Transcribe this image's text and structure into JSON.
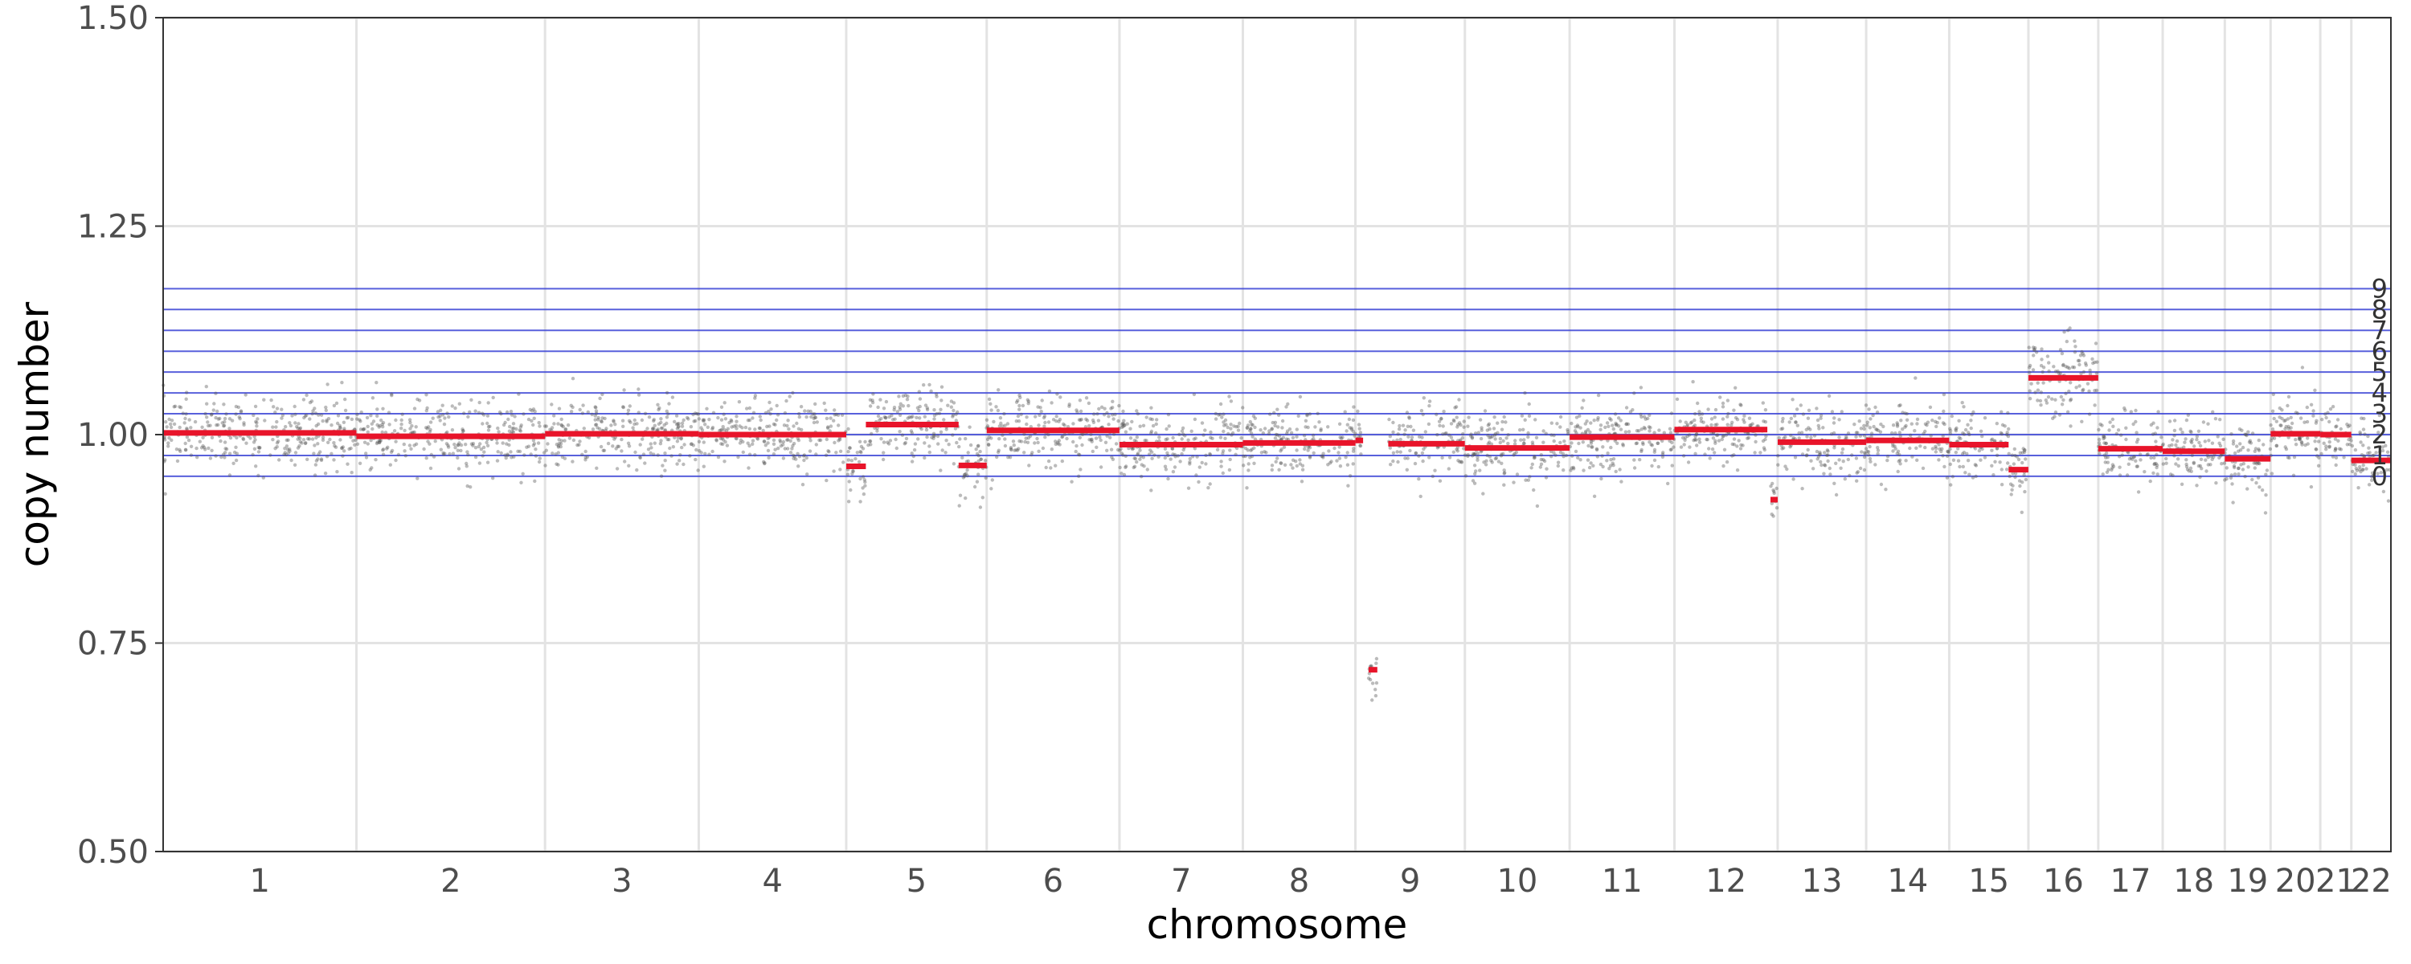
{
  "chart_data": {
    "type": "scatter",
    "title": "",
    "xlabel": "chromosome",
    "ylabel": "copy number",
    "ylim": [
      0.5,
      1.5
    ],
    "yticks": [
      "0.50",
      "0.75",
      "1.00",
      "1.25",
      "1.50"
    ],
    "grid": true,
    "colors": {
      "points": "#555555",
      "segments": "#e8142a",
      "levels": "#3b44d6",
      "grid": "#e3e3e3"
    },
    "chromosomes": [
      {
        "label": "1",
        "length": 249,
        "segments": [
          {
            "start": 0,
            "end": 1,
            "value": 1.002
          }
        ],
        "spread": 0.035
      },
      {
        "label": "2",
        "length": 243,
        "segments": [
          {
            "start": 0,
            "end": 1,
            "value": 0.998
          }
        ],
        "spread": 0.035
      },
      {
        "label": "3",
        "length": 198,
        "segments": [
          {
            "start": 0,
            "end": 1,
            "value": 1.001
          }
        ],
        "spread": 0.035
      },
      {
        "label": "4",
        "length": 190,
        "segments": [
          {
            "start": 0,
            "end": 1,
            "value": 1.0
          }
        ],
        "spread": 0.035
      },
      {
        "label": "5",
        "length": 181,
        "segments": [
          {
            "start": 0,
            "end": 0.14,
            "value": 0.962
          },
          {
            "start": 0.14,
            "end": 0.8,
            "value": 1.012
          },
          {
            "start": 0.8,
            "end": 1,
            "value": 0.963
          }
        ],
        "spread": 0.035
      },
      {
        "label": "6",
        "length": 171,
        "segments": [
          {
            "start": 0,
            "end": 1,
            "value": 1.005
          }
        ],
        "spread": 0.035
      },
      {
        "label": "7",
        "length": 159,
        "segments": [
          {
            "start": 0,
            "end": 1,
            "value": 0.988
          }
        ],
        "spread": 0.037
      },
      {
        "label": "8",
        "length": 145,
        "segments": [
          {
            "start": 0,
            "end": 1,
            "value": 0.99
          }
        ],
        "spread": 0.037
      },
      {
        "label": "9",
        "length": 141,
        "segments": [
          {
            "start": 0,
            "end": 0.07,
            "value": 0.993
          },
          {
            "start": 0.12,
            "end": 0.2,
            "value": 0.718
          },
          {
            "start": 0.3,
            "end": 1,
            "value": 0.989
          }
        ],
        "spread": 0.035
      },
      {
        "label": "10",
        "length": 135,
        "segments": [
          {
            "start": 0,
            "end": 1,
            "value": 0.984
          }
        ],
        "spread": 0.035
      },
      {
        "label": "11",
        "length": 135,
        "segments": [
          {
            "start": 0,
            "end": 1,
            "value": 0.997
          }
        ],
        "spread": 0.035
      },
      {
        "label": "12",
        "length": 133,
        "segments": [
          {
            "start": 0,
            "end": 0.9,
            "value": 1.006
          },
          {
            "start": 0.93,
            "end": 1,
            "value": 0.922
          }
        ],
        "spread": 0.035
      },
      {
        "label": "13",
        "length": 114,
        "segments": [
          {
            "start": 0,
            "end": 1,
            "value": 0.991
          }
        ],
        "spread": 0.035
      },
      {
        "label": "14",
        "length": 107,
        "segments": [
          {
            "start": 0,
            "end": 1,
            "value": 0.993
          }
        ],
        "spread": 0.035
      },
      {
        "label": "15",
        "length": 102,
        "segments": [
          {
            "start": 0,
            "end": 0.75,
            "value": 0.988
          },
          {
            "start": 0.75,
            "end": 1,
            "value": 0.958
          }
        ],
        "spread": 0.037
      },
      {
        "label": "16",
        "length": 90,
        "segments": [
          {
            "start": 0,
            "end": 1,
            "value": 1.068
          }
        ],
        "spread": 0.04
      },
      {
        "label": "17",
        "length": 83,
        "segments": [
          {
            "start": 0,
            "end": 1,
            "value": 0.983
          }
        ],
        "spread": 0.035
      },
      {
        "label": "18",
        "length": 80,
        "segments": [
          {
            "start": 0,
            "end": 1,
            "value": 0.98
          }
        ],
        "spread": 0.035
      },
      {
        "label": "19",
        "length": 59,
        "segments": [
          {
            "start": 0,
            "end": 1,
            "value": 0.971
          }
        ],
        "spread": 0.035
      },
      {
        "label": "20",
        "length": 64,
        "segments": [
          {
            "start": 0,
            "end": 1,
            "value": 1.001
          }
        ],
        "spread": 0.035
      },
      {
        "label": "21",
        "length": 40,
        "segments": [
          {
            "start": 0,
            "end": 1,
            "value": 1.0
          }
        ],
        "spread": 0.03
      },
      {
        "label": "22",
        "length": 51,
        "segments": [
          {
            "start": 0,
            "end": 1,
            "value": 0.969
          }
        ],
        "spread": 0.035
      }
    ],
    "copy_number_levels": [
      {
        "label": "0",
        "value": 0.95
      },
      {
        "label": "1",
        "value": 0.975
      },
      {
        "label": "2",
        "value": 1.0
      },
      {
        "label": "3",
        "value": 1.025
      },
      {
        "label": "4",
        "value": 1.05
      },
      {
        "label": "5",
        "value": 1.075
      },
      {
        "label": "6",
        "value": 1.1
      },
      {
        "label": "7",
        "value": 1.125
      },
      {
        "label": "8",
        "value": 1.15
      },
      {
        "label": "9",
        "value": 1.175
      }
    ]
  }
}
